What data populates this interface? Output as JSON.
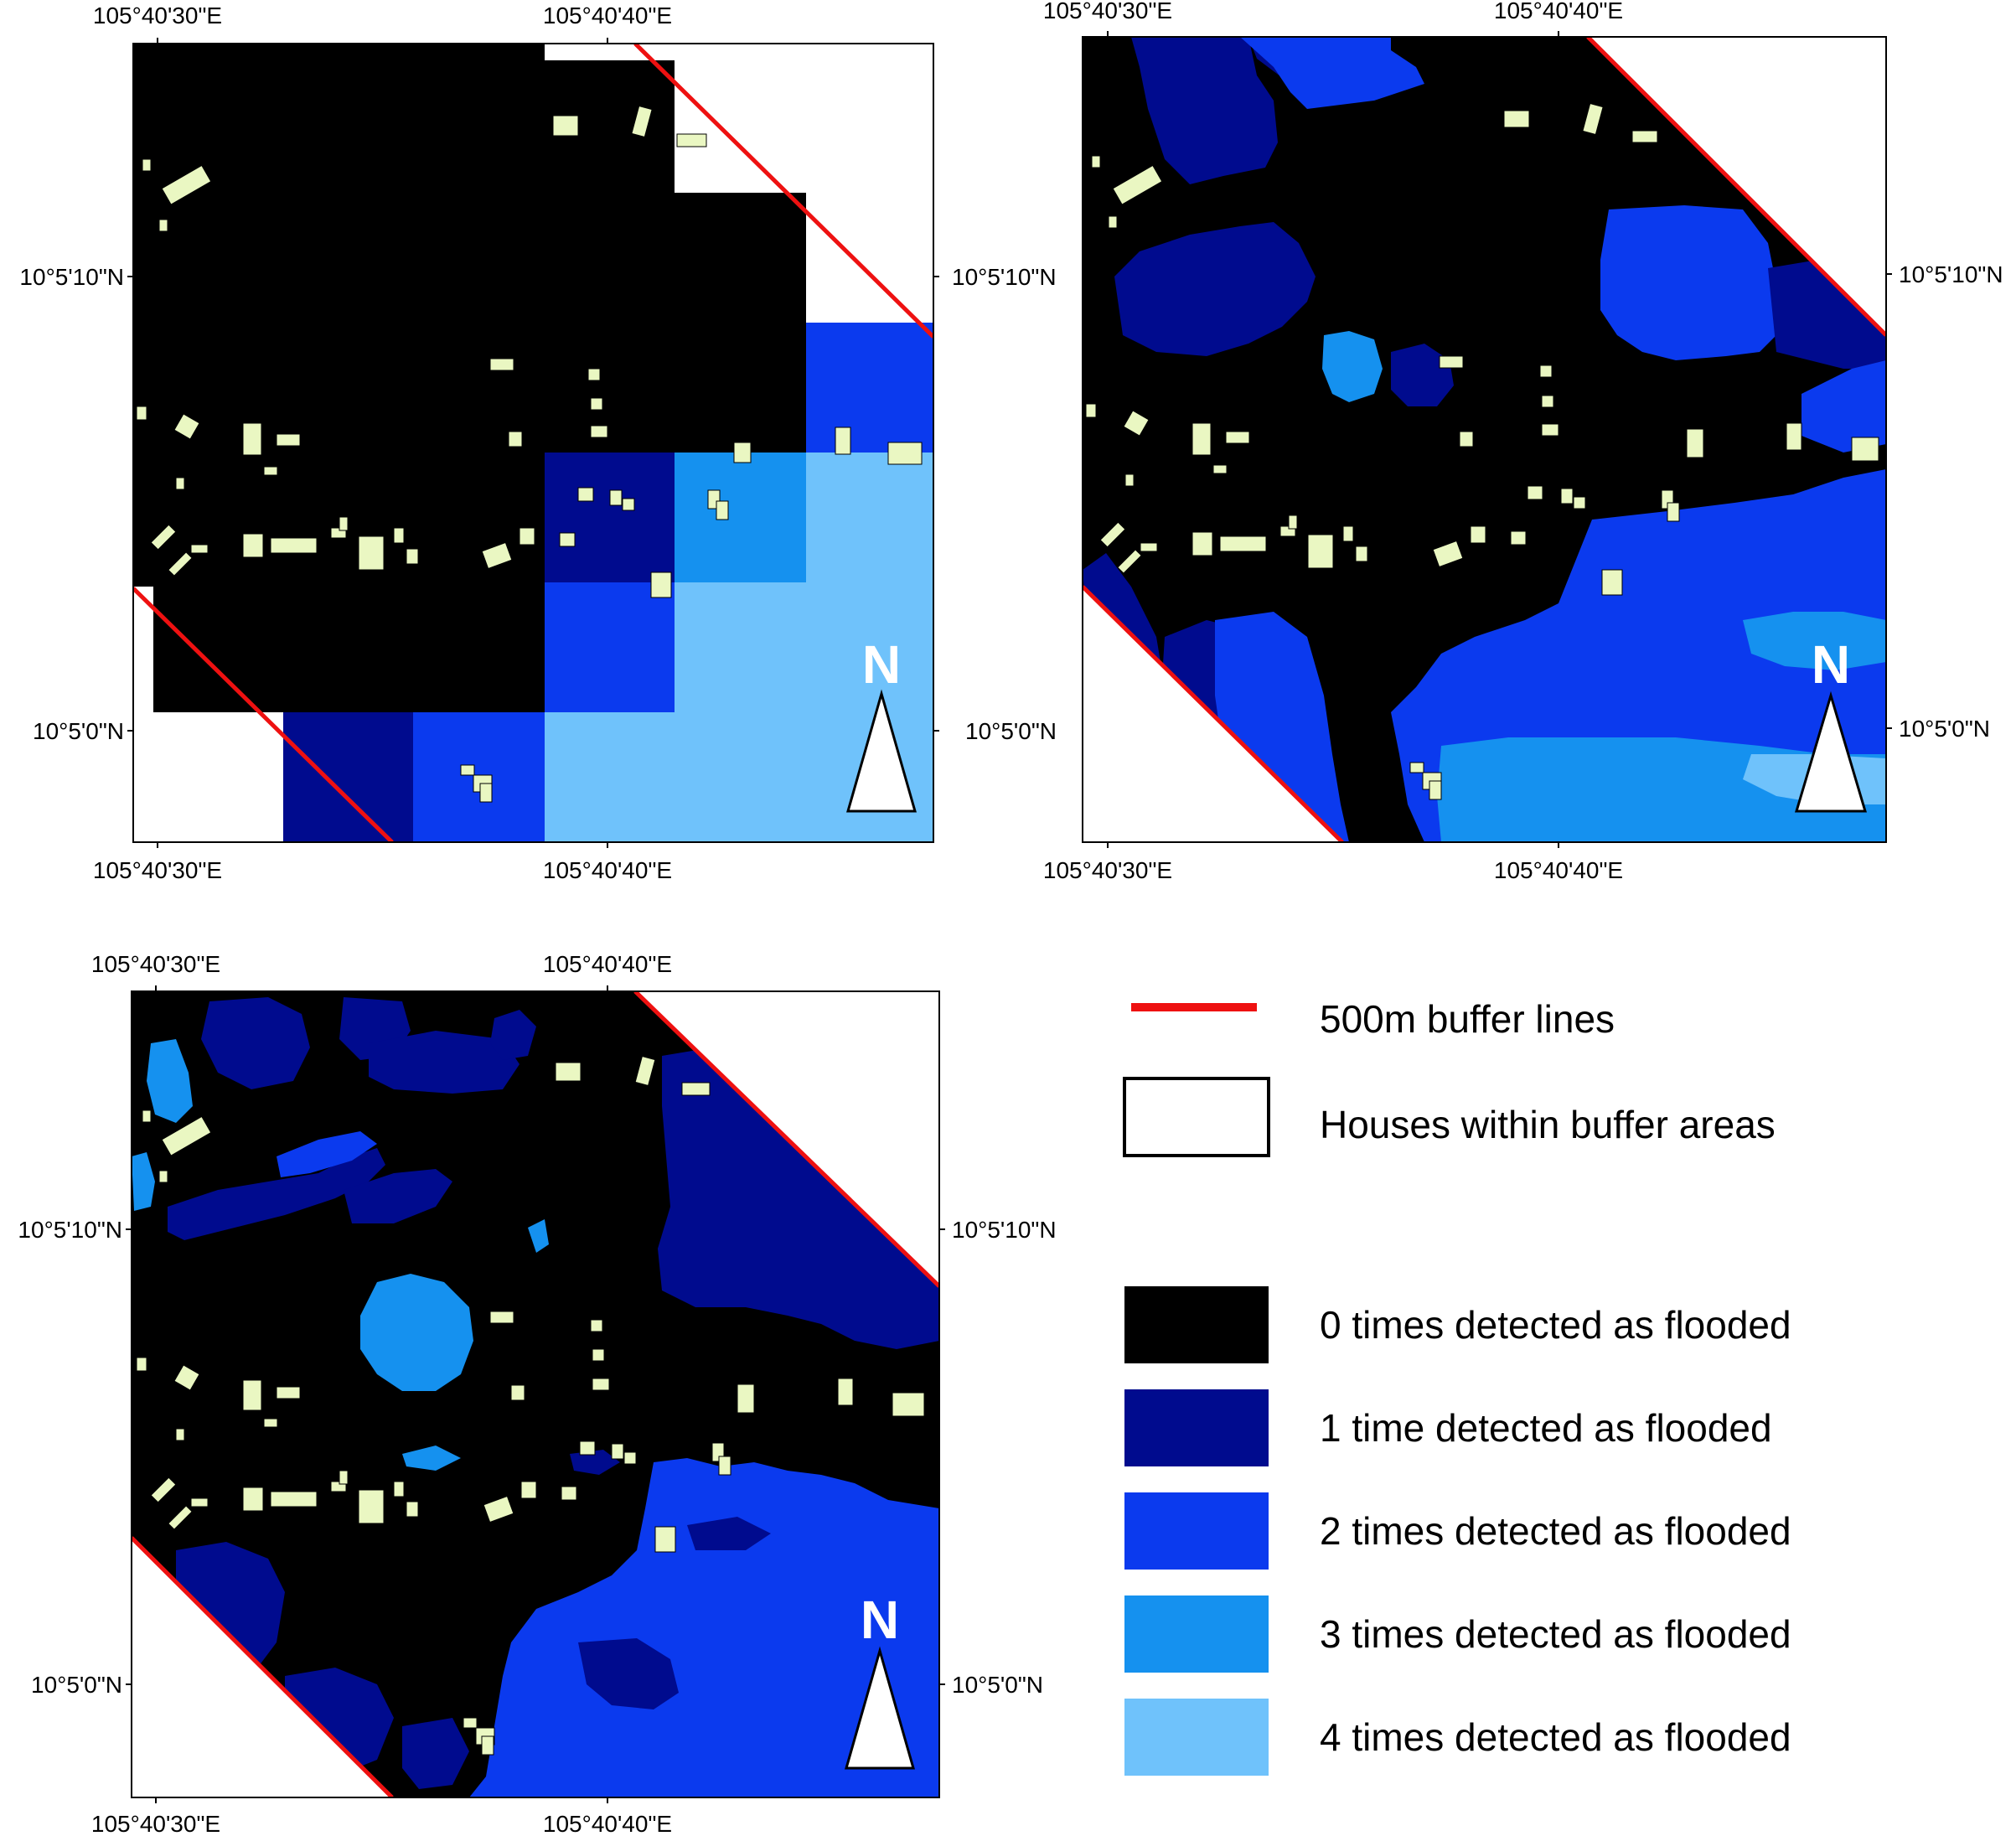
{
  "colors": {
    "flood_0": "#000000",
    "flood_1": "#000b8e",
    "flood_2": "#0b3aee",
    "flood_3": "#1591ef",
    "flood_4": "#6fc2fb",
    "house_fill": "#eaf7c2",
    "buffer_line": "#ee1111",
    "frame": "#000000",
    "background": "#ffffff"
  },
  "icons": {
    "north_arrow": "north-arrow-icon"
  },
  "panels": [
    {
      "id": "panel-1",
      "lon_top": [
        "105°40'30\"E",
        "105°40'40\"E"
      ],
      "lon_bottom": [
        "105°40'30\"E",
        "105°40'40\"E"
      ],
      "lat_left": [
        "10°5'10\"N",
        "10°5'0\"N"
      ],
      "lat_right": [
        "10°5'10\"N",
        "10°5'0\"N"
      ],
      "north_label": "N"
    },
    {
      "id": "panel-2",
      "lon_top": [
        "105°40'30\"E",
        "105°40'40\"E"
      ],
      "lon_bottom": [
        "105°40'30\"E",
        "105°40'40\"E"
      ],
      "lat_left": [],
      "lat_right": [
        "10°5'10\"N",
        "10°5'0\"N"
      ],
      "north_label": "N"
    },
    {
      "id": "panel-3",
      "lon_top": [
        "105°40'30\"E",
        "105°40'40\"E"
      ],
      "lon_bottom": [
        "105°40'30\"E",
        "105°40'40\"E"
      ],
      "lat_left": [
        "10°5'10\"N",
        "10°5'0\"N"
      ],
      "lat_right": [
        "10°5'10\"N",
        "10°5'0\"N"
      ],
      "north_label": "N"
    }
  ],
  "legend": {
    "buffer_line": "500m buffer lines",
    "houses": "Houses within buffer areas",
    "classes": [
      {
        "count": 0,
        "label": "0 times detected as flooded",
        "color_key": "flood_0"
      },
      {
        "count": 1,
        "label": "1 time detected as flooded",
        "color_key": "flood_1"
      },
      {
        "count": 2,
        "label": "2 times detected as flooded",
        "color_key": "flood_2"
      },
      {
        "count": 3,
        "label": "3 times detected as flooded",
        "color_key": "flood_3"
      },
      {
        "count": 4,
        "label": "4 times detected as flooded",
        "color_key": "flood_4"
      }
    ]
  }
}
